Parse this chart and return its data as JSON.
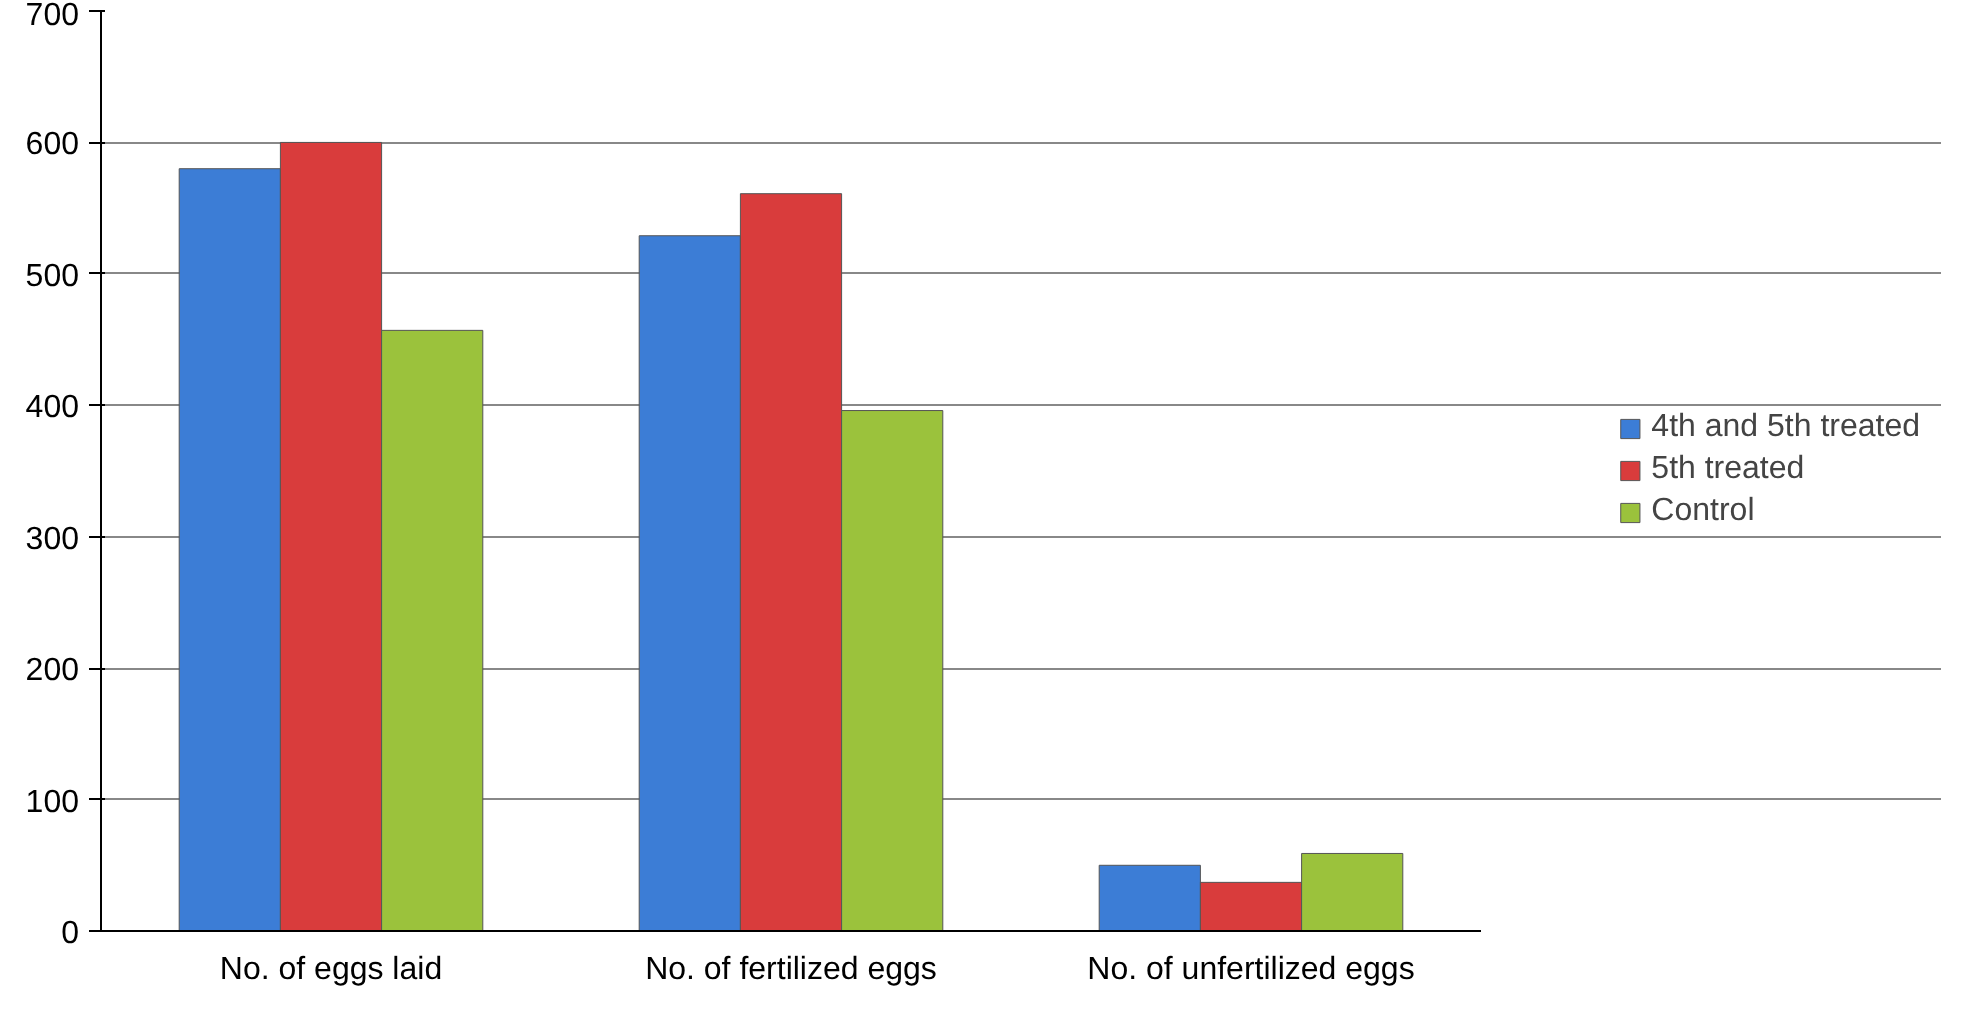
{
  "chart_data": {
    "type": "bar",
    "categories": [
      "No. of eggs laid",
      "No. of fertilized eggs",
      "No. of unfertilized eggs"
    ],
    "series": [
      {
        "name": "4th and 5th treated",
        "color": "#3c7dd6",
        "values": [
          580,
          529,
          50
        ]
      },
      {
        "name": "5th treated",
        "color": "#d93c3c",
        "values": [
          600,
          561,
          37
        ]
      },
      {
        "name": "Control",
        "color": "#9bc23c",
        "values": [
          457,
          396,
          59
        ]
      }
    ],
    "ylim": [
      0,
      700
    ],
    "yticks": [
      0,
      100,
      200,
      300,
      400,
      500,
      600,
      700
    ],
    "grid": "y",
    "legend": "right"
  }
}
